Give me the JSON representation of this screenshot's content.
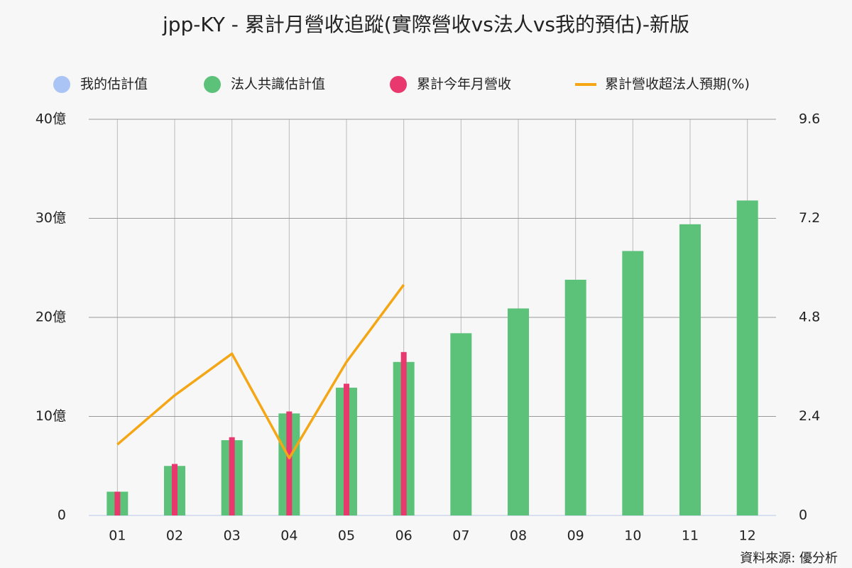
{
  "chart_data": {
    "type": "bar",
    "title": "jpp-KY - 累計月營收追蹤(實際營收vs法人vs我的預估)-新版",
    "source": "資料來源: 優分析",
    "categories": [
      "01",
      "02",
      "03",
      "04",
      "05",
      "06",
      "07",
      "08",
      "09",
      "10",
      "11",
      "12"
    ],
    "series": [
      {
        "name": "我的估計值",
        "color": "#a9c4f5",
        "type": "bar",
        "values": [
          null,
          null,
          null,
          null,
          null,
          null,
          null,
          null,
          null,
          null,
          null,
          null
        ]
      },
      {
        "name": "法人共識估計值",
        "color": "#5cc27a",
        "type": "bar",
        "values": [
          2.4,
          5.0,
          7.6,
          10.3,
          12.9,
          15.5,
          18.4,
          20.9,
          23.8,
          26.7,
          29.4,
          31.8
        ]
      },
      {
        "name": "累計今年月營收",
        "color": "#e8386d",
        "type": "bar",
        "values": [
          2.4,
          5.2,
          7.9,
          10.5,
          13.3,
          16.5,
          null,
          null,
          null,
          null,
          null,
          null
        ]
      },
      {
        "name": "累計營收超法人預期(%)",
        "color": "#f5a615",
        "type": "line",
        "axis": "y2",
        "values": [
          1.72,
          2.91,
          3.92,
          1.39,
          3.72,
          5.59,
          null,
          null,
          null,
          null,
          null,
          null
        ]
      }
    ],
    "ylim": [
      0,
      40
    ],
    "yticks": [
      0,
      {
        "value": 10,
        "label": "10億"
      },
      {
        "value": 20,
        "label": "20億"
      },
      {
        "value": 30,
        "label": "30億"
      },
      {
        "value": 40,
        "label": "40億"
      }
    ],
    "y2lim": [
      0,
      9.6
    ],
    "y2ticks": [
      0,
      2.4,
      4.8,
      7.2,
      9.6
    ],
    "grid": true,
    "legend": "top"
  }
}
